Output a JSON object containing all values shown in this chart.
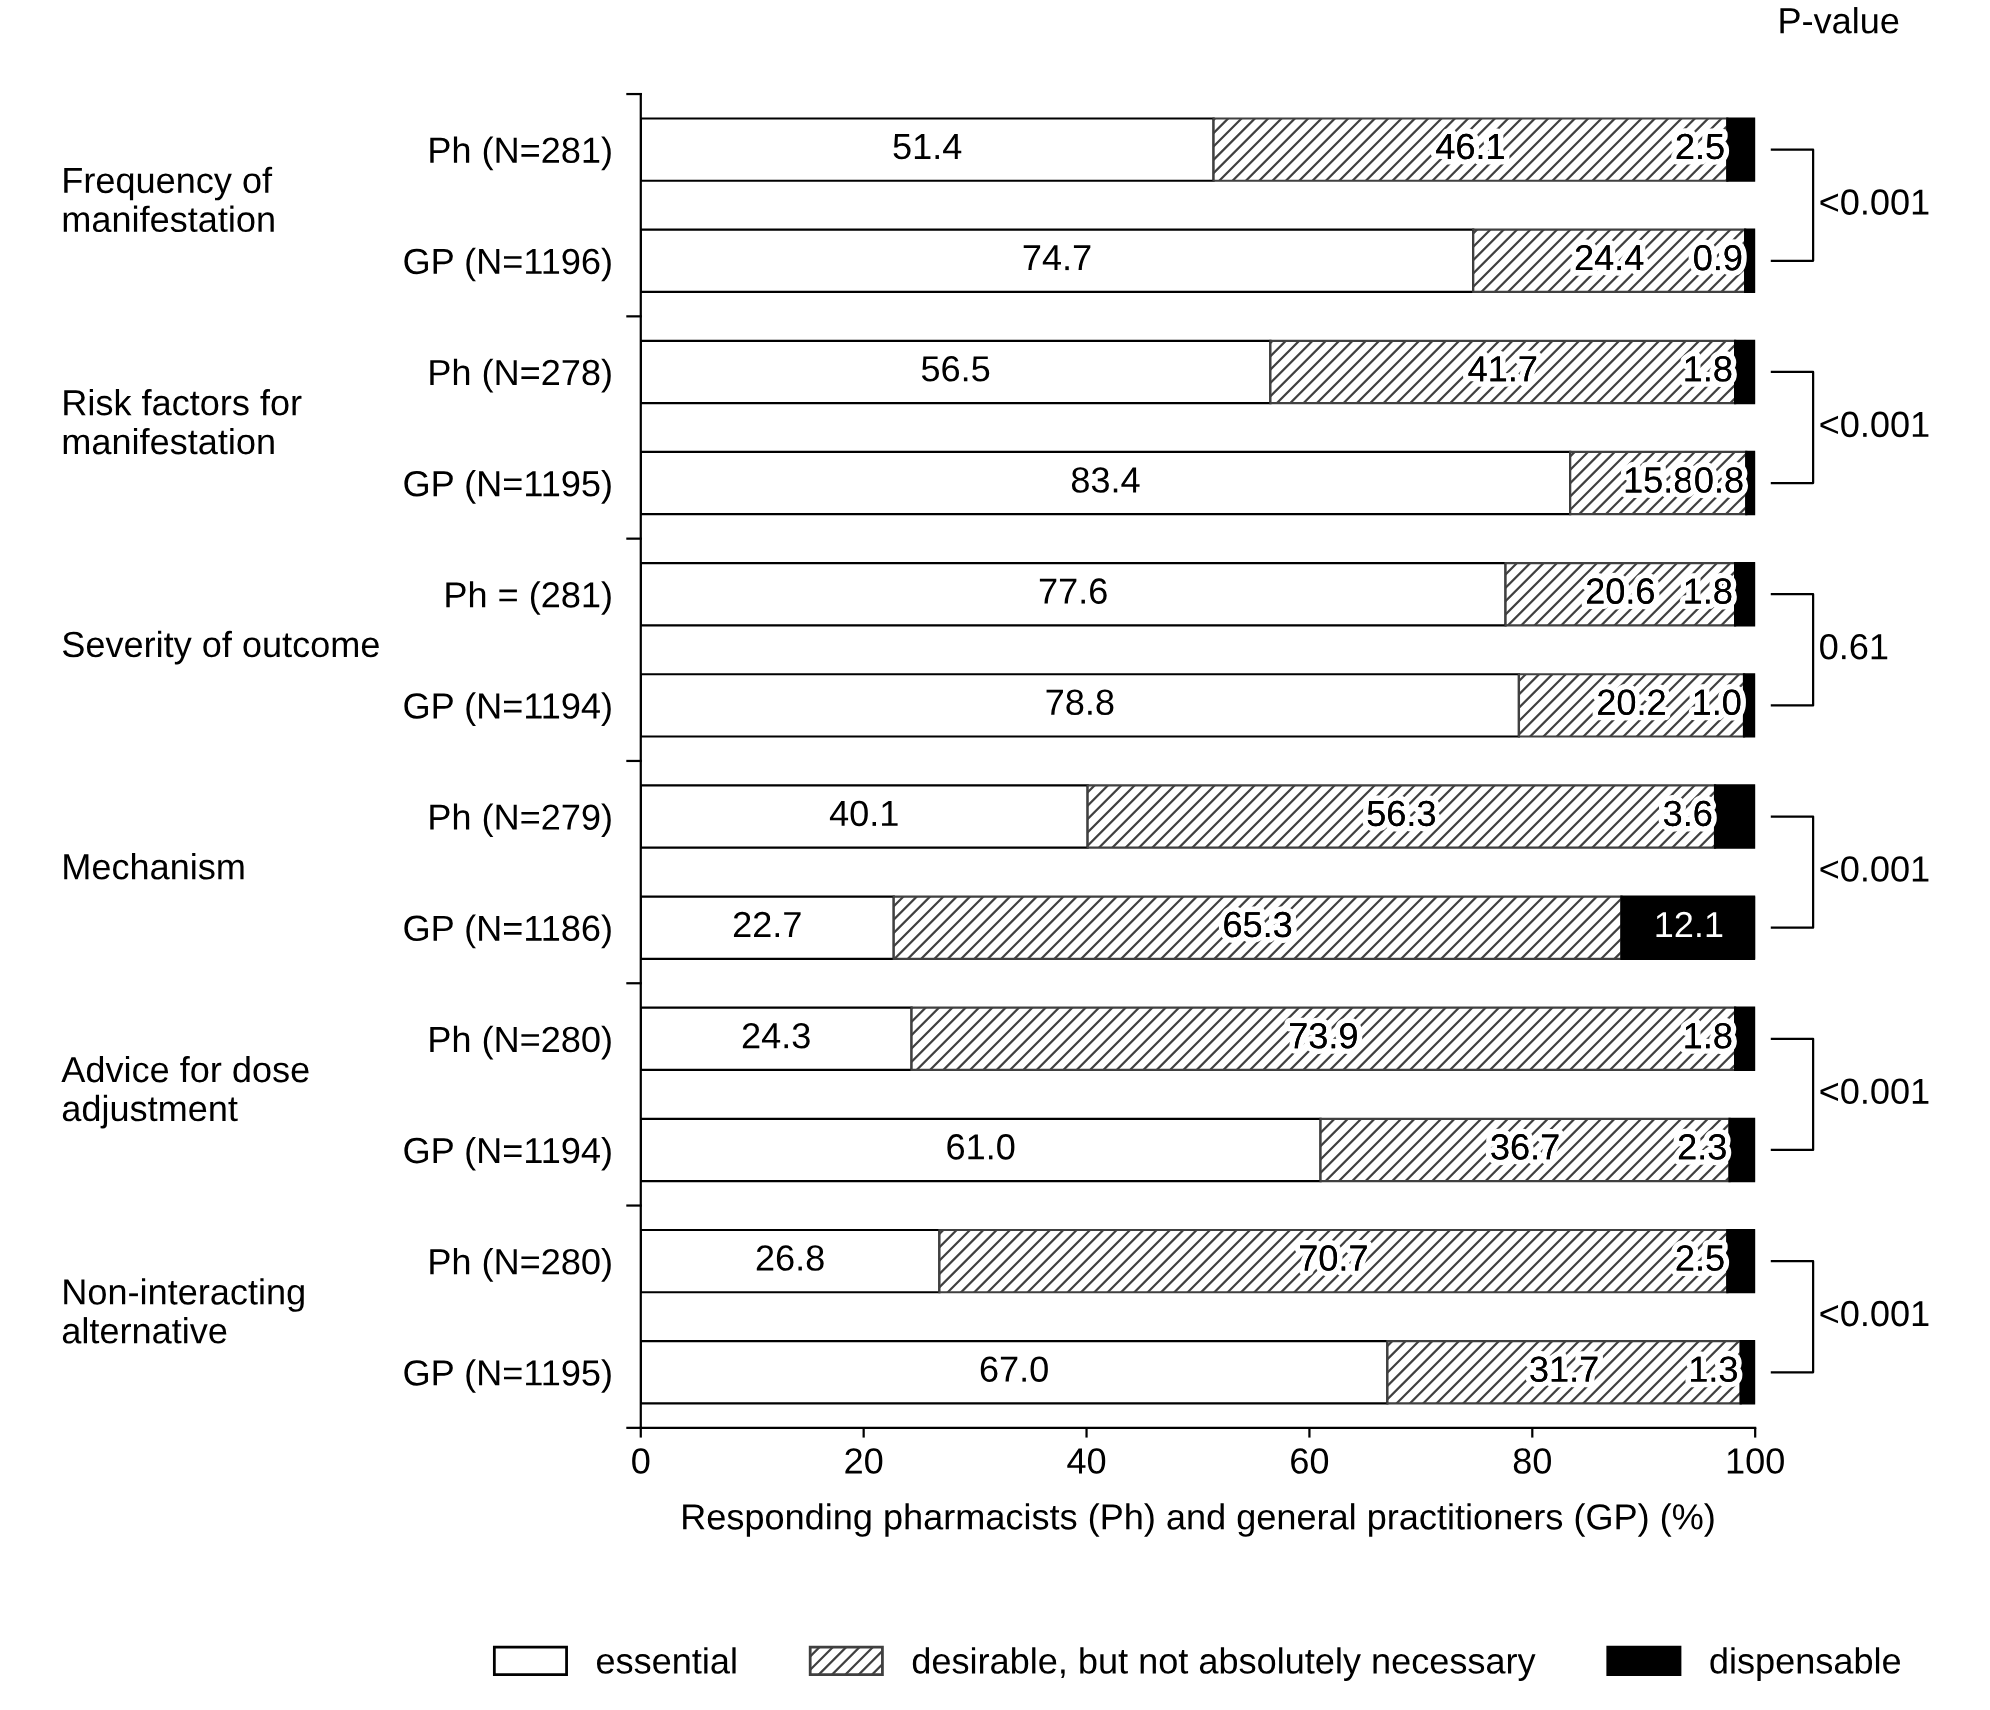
{
  "chart_data": {
    "type": "bar",
    "orientation": "horizontal",
    "stacked": true,
    "categories": [
      "Ph (N=281)",
      "GP (N=1196)",
      "Ph (N=278)",
      "GP (N=1195)",
      "Ph = (281)",
      "GP (N=1194)",
      "Ph (N=279)",
      "GP (N=1186)",
      "Ph (N=280)",
      "GP (N=1194)",
      "Ph (N=280)",
      "GP (N=1195)"
    ],
    "series": [
      {
        "name": "essential",
        "color": "#ffffff",
        "values": [
          51.4,
          74.7,
          56.5,
          83.4,
          77.6,
          78.8,
          40.1,
          22.7,
          24.3,
          61.0,
          26.8,
          67.0
        ],
        "value_labels": [
          "51.4",
          "74.7",
          "56.5",
          "83.4",
          "77.6",
          "78.8",
          "40.1",
          "22.7",
          "24.3",
          "61.0",
          "26.8",
          "67.0"
        ]
      },
      {
        "name": "desirable, but not absolutely necessary",
        "color": "#404040",
        "values": [
          46.1,
          24.4,
          41.7,
          15.8,
          20.6,
          20.2,
          56.3,
          65.3,
          73.9,
          36.7,
          70.7,
          31.7
        ],
        "value_labels": [
          "46.1",
          "24.4",
          "41.7",
          "15.8",
          "20.6",
          "20.2",
          "56.3",
          "65.3",
          "73.9",
          "36.7",
          "70.7",
          "31.7"
        ]
      },
      {
        "name": "dispensable",
        "color": "#000000",
        "values": [
          2.5,
          0.9,
          1.8,
          0.8,
          1.8,
          1.0,
          3.6,
          12.1,
          1.8,
          2.3,
          2.5,
          1.3
        ],
        "value_labels": [
          "2.5",
          "0.9",
          "1.8",
          "0.8",
          "1.8",
          "1.0",
          "3.6",
          "12.1",
          "1.8",
          "2.3",
          "2.5",
          "1.3"
        ]
      }
    ],
    "xlim": [
      0,
      100
    ],
    "xticks": [
      0,
      20,
      40,
      60,
      80,
      100
    ],
    "xlabel": "Responding pharmacists (Ph) and general practitioners (GP) (%)",
    "legend": "bottom",
    "grid": false,
    "annotations": [
      "P-value",
      "Frequency of manifestation",
      "<0.001",
      "Risk factors for manifestation",
      "<0.001",
      "Severity of outcome",
      "0.61",
      "Mechanism",
      "<0.001",
      "Advice for dose adjustment",
      "<0.001",
      "Non-interacting alternative",
      "<0.001"
    ]
  }
}
